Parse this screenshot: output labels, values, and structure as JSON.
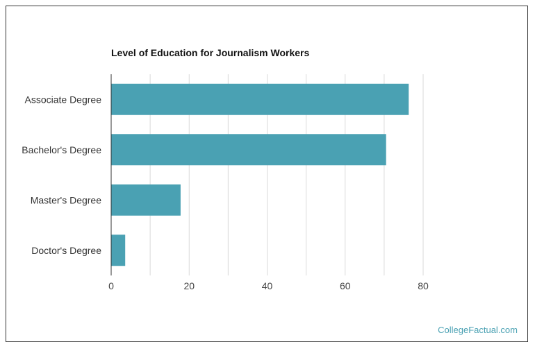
{
  "chart_data": {
    "type": "bar",
    "orientation": "horizontal",
    "title": "Level of Education for Journalism Workers",
    "categories": [
      "Associate Degree",
      "Bachelor's Degree",
      "Master's Degree",
      "Doctor's Degree"
    ],
    "values": [
      76.3,
      70.5,
      17.8,
      3.6
    ],
    "xlim": [
      0,
      80
    ],
    "xticks": [
      0,
      20,
      40,
      60,
      80
    ],
    "xlabel": "",
    "ylabel": "",
    "grid": true,
    "bar_color": "#4aa1b3"
  },
  "watermark": "CollegeFactual.com"
}
